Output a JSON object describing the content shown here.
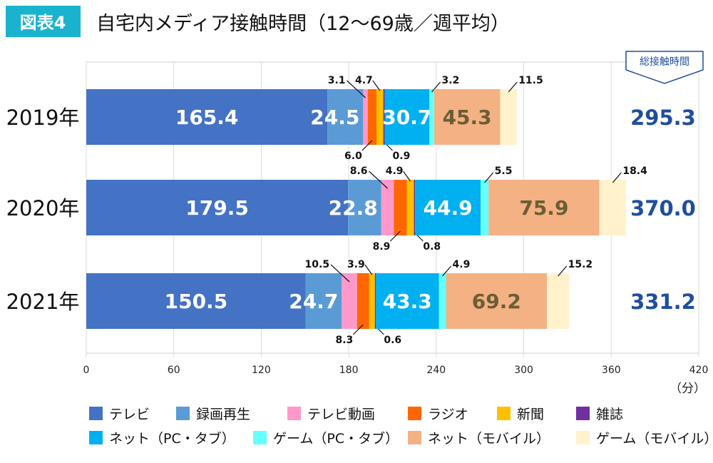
{
  "header": {
    "badge": "図表4",
    "title": "自宅内メディア接触時間（12〜69歳／週平均）",
    "badge_color": "#1ab3cf"
  },
  "total_header": "総接触時間",
  "chart_data": {
    "type": "bar",
    "orientation": "horizontal",
    "stacked": true,
    "categories": [
      "2019年",
      "2020年",
      "2021年"
    ],
    "xlim": [
      0,
      420
    ],
    "xticks": [
      "0",
      "60",
      "120",
      "180",
      "240",
      "300",
      "360",
      "420"
    ],
    "xunit": "（分）",
    "grid": true,
    "legend_position": "bottom",
    "series": [
      {
        "name": "テレビ",
        "color": "#4472c4",
        "values": [
          165.4,
          179.5,
          150.5
        ],
        "label": "inside-white"
      },
      {
        "name": "録画再生",
        "color": "#5b9bd5",
        "values": [
          24.5,
          22.8,
          24.7
        ],
        "label": "inside-white"
      },
      {
        "name": "テレビ動画",
        "color": "#ff99cc",
        "values": [
          3.1,
          8.6,
          10.5
        ],
        "label": "above-left"
      },
      {
        "name": "ラジオ",
        "color": "#ff6600",
        "values": [
          6.0,
          8.9,
          8.3
        ],
        "label": "below-left"
      },
      {
        "name": "新聞",
        "color": "#ffc000",
        "values": [
          4.7,
          4.9,
          3.9
        ],
        "label": "above-left-short"
      },
      {
        "name": "雑誌",
        "color": "#7030a0",
        "values": [
          0.9,
          0.8,
          0.6
        ],
        "label": "below-right"
      },
      {
        "name": "ネット（PC・タブ）",
        "color": "#00b0f0",
        "values": [
          30.7,
          44.9,
          43.3
        ],
        "label": "inside-white"
      },
      {
        "name": "ゲーム（PC・タブ）",
        "color": "#66ffff",
        "values": [
          3.2,
          5.5,
          4.9
        ],
        "label": "above-right"
      },
      {
        "name": "ネット（モバイル）",
        "color": "#f4b183",
        "values": [
          45.3,
          75.9,
          69.2
        ],
        "label": "inside-dark"
      },
      {
        "name": "ゲーム（モバイル）",
        "color": "#fff2cc",
        "values": [
          11.5,
          18.4,
          15.2
        ],
        "label": "above-right"
      }
    ],
    "value_labels": [
      [
        "165.4",
        "24.5",
        "3.1",
        "6.0",
        "4.7",
        "0.9",
        "30.7",
        "3.2",
        "45.3",
        "11.5"
      ],
      [
        "179.5",
        "22.8",
        "8.6",
        "8.9",
        "4.9",
        "0.8",
        "44.9",
        "5.5",
        "75.9",
        "18.4"
      ],
      [
        "150.5",
        "24.7",
        "10.5",
        "8.3",
        "3.9",
        "0.6",
        "43.3",
        "4.9",
        "69.2",
        "15.2"
      ]
    ],
    "totals": [
      "295.3",
      "370.0",
      "331.2"
    ],
    "total_color": "#1f4e9e"
  }
}
